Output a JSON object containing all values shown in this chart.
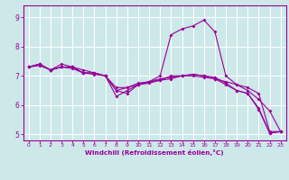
{
  "title": "",
  "xlabel": "Windchill (Refroidissement éolien,°C)",
  "ylabel": "",
  "bg_color": "#cce8e8",
  "grid_color": "#ffffff",
  "line_color": "#990099",
  "xlim": [
    -0.5,
    23.5
  ],
  "ylim": [
    4.8,
    9.4
  ],
  "xticks": [
    0,
    1,
    2,
    3,
    4,
    5,
    6,
    7,
    8,
    9,
    10,
    11,
    12,
    13,
    14,
    15,
    16,
    17,
    18,
    19,
    20,
    21,
    22,
    23
  ],
  "yticks": [
    5,
    6,
    7,
    8,
    9
  ],
  "curves": [
    [
      7.3,
      7.4,
      7.2,
      7.4,
      7.3,
      7.2,
      7.1,
      7.0,
      6.3,
      6.5,
      6.7,
      6.8,
      7.0,
      8.4,
      8.6,
      8.7,
      8.9,
      8.5,
      7.0,
      6.7,
      6.5,
      6.2,
      5.8,
      5.1
    ],
    [
      7.3,
      7.4,
      7.2,
      7.3,
      7.3,
      7.1,
      7.1,
      7.0,
      6.5,
      6.4,
      6.7,
      6.75,
      6.85,
      7.0,
      7.0,
      7.0,
      6.95,
      6.9,
      6.8,
      6.7,
      6.6,
      6.4,
      5.1,
      5.1
    ],
    [
      7.3,
      7.4,
      7.2,
      7.3,
      7.3,
      7.1,
      7.1,
      7.0,
      6.5,
      6.6,
      6.75,
      6.8,
      6.9,
      6.95,
      7.0,
      7.05,
      7.0,
      6.9,
      6.7,
      6.5,
      6.4,
      5.9,
      5.05,
      5.1
    ],
    [
      7.3,
      7.35,
      7.2,
      7.3,
      7.25,
      7.1,
      7.05,
      7.0,
      6.6,
      6.6,
      6.7,
      6.8,
      6.85,
      6.9,
      7.0,
      7.05,
      7.0,
      6.95,
      6.75,
      6.5,
      6.4,
      5.85,
      5.05,
      5.1
    ]
  ]
}
